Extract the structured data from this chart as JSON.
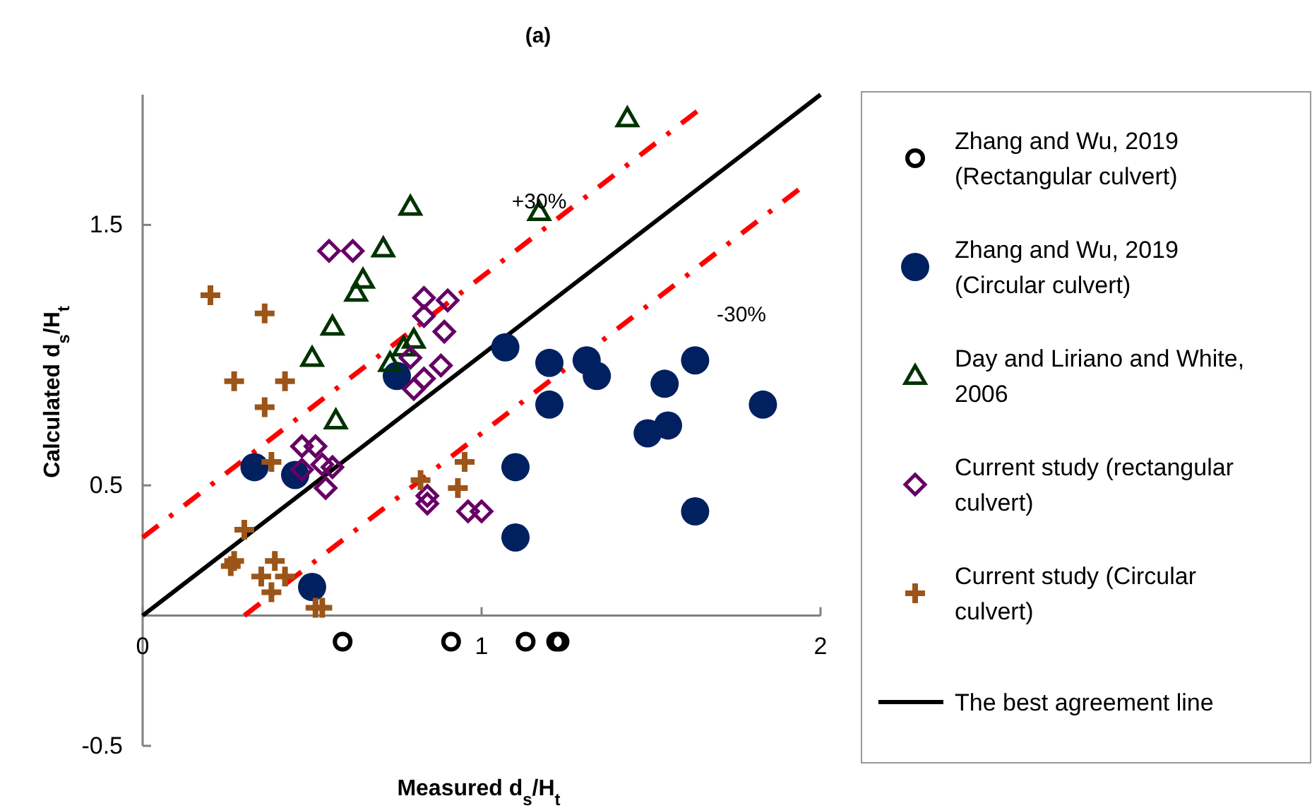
{
  "chart_data": {
    "type": "scatter",
    "title": "(a)",
    "xlabel": "Measured d$_{s}$/H$_{t}$",
    "ylabel": "Calculated d$_{s}$/H$_{t}$",
    "xlim": [
      0,
      2
    ],
    "ylim": [
      -0.5,
      2
    ],
    "xticks": [
      0,
      1,
      2
    ],
    "yticks": [
      -0.5,
      0.5,
      1.5
    ],
    "grid": false,
    "legend": "right",
    "annotations": [
      {
        "text": "+30%",
        "x": 1.17,
        "y": 1.59
      },
      "-30%"
    ],
    "series": [
      {
        "name": "Zhang and Wu, 2019 (Rectangular culvert)",
        "marker": "circle",
        "color": "#000000",
        "x": [
          0.59,
          0.91,
          1.13,
          1.22,
          1.23
        ],
        "values": [
          -0.1,
          -0.1,
          -0.1,
          -0.1,
          -0.1
        ]
      },
      {
        "name": "Zhang and Wu, 2019 (Circular culvert)",
        "marker": "circle",
        "color": "#002060",
        "x": [
          0.75,
          0.33,
          0.45,
          0.5,
          1.07,
          1.2,
          1.31,
          1.34,
          1.54,
          1.63,
          1.2,
          1.49,
          1.55,
          1.83,
          1.1,
          1.63,
          1.1
        ],
        "values": [
          0.92,
          0.57,
          0.54,
          0.11,
          1.03,
          0.97,
          0.98,
          0.92,
          0.89,
          0.98,
          0.81,
          0.7,
          0.73,
          0.81,
          0.57,
          0.4,
          0.3
        ]
      },
      {
        "name": "Day and Liriano and White, 2006",
        "marker": "triangle",
        "color": "#003300",
        "x": [
          0.79,
          0.71,
          0.65,
          0.63,
          0.56,
          0.5,
          0.8,
          0.77,
          0.73,
          0.57,
          1.43,
          1.17
        ],
        "values": [
          1.57,
          1.41,
          1.29,
          1.24,
          1.11,
          0.99,
          1.06,
          1.03,
          0.97,
          0.75,
          1.91,
          1.55
        ]
      },
      {
        "name": "Current study (rectangular culvert)",
        "marker": "diamond",
        "color": "#660066",
        "x": [
          0.55,
          0.62,
          0.83,
          0.9,
          0.83,
          0.89,
          0.79,
          0.88,
          0.83,
          0.8,
          0.47,
          0.51,
          0.53,
          0.56,
          0.47,
          0.54,
          0.84,
          0.84,
          0.96,
          1.0
        ],
        "values": [
          1.4,
          1.4,
          1.22,
          1.21,
          1.15,
          1.09,
          0.99,
          0.96,
          0.91,
          0.87,
          0.65,
          0.65,
          0.58,
          0.57,
          0.56,
          0.49,
          0.46,
          0.43,
          0.4,
          0.4
        ]
      },
      {
        "name": "Current study (Circular culvert)",
        "marker": "cross",
        "color": "#9c5518",
        "x": [
          0.2,
          0.36,
          0.27,
          0.42,
          0.36,
          0.38,
          0.3,
          0.26,
          0.27,
          0.39,
          0.35,
          0.42,
          0.38,
          0.51,
          0.53,
          0.82,
          0.95,
          0.93
        ],
        "values": [
          1.23,
          1.16,
          0.9,
          0.9,
          0.8,
          0.59,
          0.33,
          0.19,
          0.21,
          0.21,
          0.15,
          0.15,
          0.09,
          0.03,
          0.03,
          0.52,
          0.59,
          0.49
        ]
      },
      {
        "type": "line",
        "line_style": "dashdot",
        "color": "#ff0000",
        "x": [
          0,
          1.65
        ],
        "values": [
          0.3,
          1.95
        ]
      },
      {
        "type": "line",
        "line_style": "dashdot",
        "color": "#ff0000",
        "x": [
          0.3,
          1.95
        ],
        "values": [
          0,
          1.65
        ]
      },
      {
        "name": "The best agreement line",
        "type": "line",
        "line_style": "solid",
        "color": "#000000",
        "x": [
          0,
          2
        ],
        "values": [
          0,
          2
        ]
      }
    ]
  }
}
